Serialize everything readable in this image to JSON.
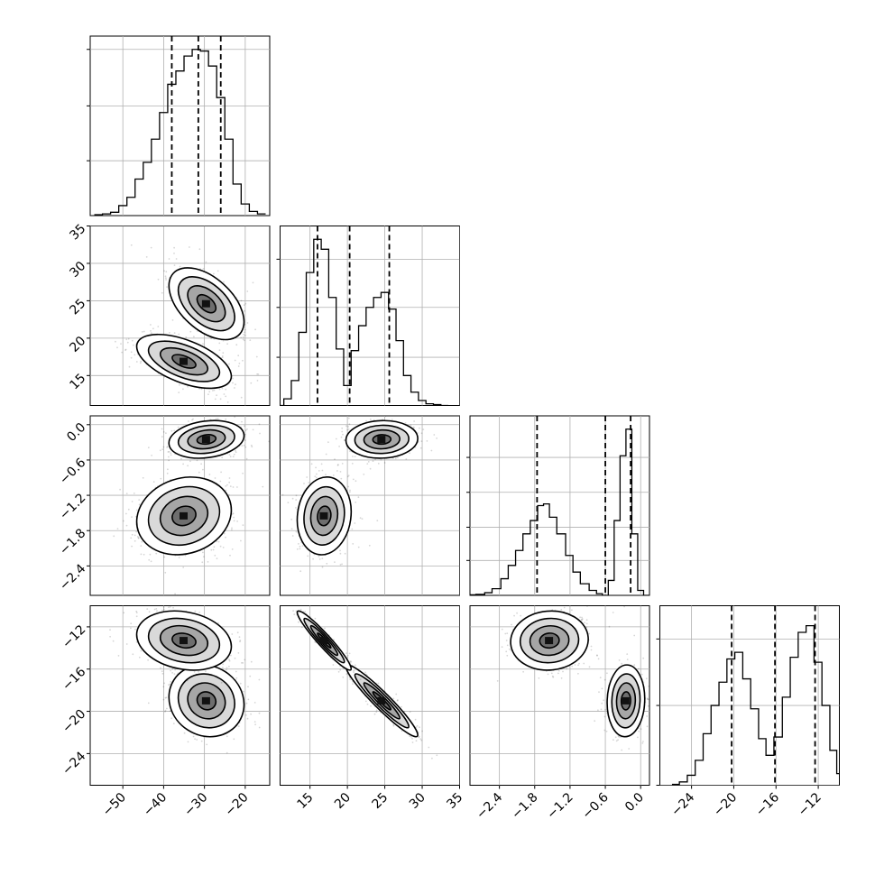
{
  "chart_data": {
    "type": "corner",
    "parameters": [
      {
        "range": [
          -58,
          -14
        ],
        "ticks": [
          "−50",
          "−40",
          "−30",
          "−20"
        ],
        "tick_values": [
          -50,
          -40,
          -30,
          -20
        ],
        "quantiles": [
          -38,
          -31.5,
          -26
        ],
        "hist_max": 1.0,
        "hist_ticks": [
          1.0,
          0.66,
          0.33
        ],
        "hist": [
          [
            -56,
            0.005
          ],
          [
            -54,
            0.01
          ],
          [
            -52,
            0.02
          ],
          [
            -50,
            0.06
          ],
          [
            -48,
            0.11
          ],
          [
            -46,
            0.22
          ],
          [
            -44,
            0.32
          ],
          [
            -42,
            0.46
          ],
          [
            -40,
            0.62
          ],
          [
            -38,
            0.79
          ],
          [
            -36,
            0.87
          ],
          [
            -34,
            0.96
          ],
          [
            -32,
            1.0
          ],
          [
            -30,
            0.99
          ],
          [
            -28,
            0.9
          ],
          [
            -26,
            0.71
          ],
          [
            -24,
            0.46
          ],
          [
            -22,
            0.19
          ],
          [
            -20,
            0.07
          ],
          [
            -18,
            0.025
          ],
          [
            -16,
            0.01
          ]
        ]
      },
      {
        "range": [
          11,
          35
        ],
        "ticks": [
          "15",
          "20",
          "25",
          "30",
          "35"
        ],
        "tick_values": [
          15,
          20,
          25,
          30,
          35
        ],
        "quantiles": [
          16,
          20.3,
          25.6
        ],
        "hist_max": 1.0,
        "hist_ticks": [
          0.88,
          0.59,
          0.29
        ],
        "hist": [
          [
            11,
            0.0
          ],
          [
            12,
            0.04
          ],
          [
            13,
            0.15
          ],
          [
            14,
            0.44
          ],
          [
            15,
            0.8
          ],
          [
            16,
            1.0
          ],
          [
            17,
            0.94
          ],
          [
            18,
            0.65
          ],
          [
            19,
            0.34
          ],
          [
            20,
            0.12
          ],
          [
            21,
            0.33
          ],
          [
            22,
            0.48
          ],
          [
            23,
            0.59
          ],
          [
            24,
            0.65
          ],
          [
            25,
            0.68
          ],
          [
            26,
            0.58
          ],
          [
            27,
            0.39
          ],
          [
            28,
            0.18
          ],
          [
            29,
            0.08
          ],
          [
            30,
            0.03
          ],
          [
            31,
            0.01
          ],
          [
            32,
            0.005
          ],
          [
            33,
            0.0
          ]
        ]
      },
      {
        "range": [
          -2.9,
          0.15
        ],
        "ticks": [
          "−2.4",
          "−1.8",
          "−1.2",
          "−0.6",
          "0.0"
        ],
        "tick_values": [
          -2.4,
          -1.8,
          -1.2,
          -0.6,
          0.0
        ],
        "quantiles": [
          -1.76,
          -0.6,
          -0.17
        ],
        "hist_max": 1.0,
        "hist_ticks": [
          0.83,
          0.62,
          0.41,
          0.21
        ],
        "hist": [
          [
            -2.9,
            0.003
          ],
          [
            -2.7,
            0.006
          ],
          [
            -2.6,
            0.016
          ],
          [
            -2.45,
            0.04
          ],
          [
            -2.3,
            0.1
          ],
          [
            -2.2,
            0.18
          ],
          [
            -2.05,
            0.27
          ],
          [
            -1.95,
            0.37
          ],
          [
            -1.8,
            0.45
          ],
          [
            -1.7,
            0.54
          ],
          [
            -1.6,
            0.55
          ],
          [
            -1.5,
            0.47
          ],
          [
            -1.35,
            0.37
          ],
          [
            -1.2,
            0.24
          ],
          [
            -1.1,
            0.14
          ],
          [
            -0.95,
            0.07
          ],
          [
            -0.8,
            0.03
          ],
          [
            -0.7,
            0.01
          ],
          [
            -0.6,
            0.0
          ],
          [
            -0.5,
            0.09
          ],
          [
            -0.4,
            0.45
          ],
          [
            -0.3,
            0.84
          ],
          [
            -0.2,
            1.0
          ],
          [
            -0.1,
            0.37
          ],
          [
            0.0,
            0.03
          ],
          [
            0.1,
            0.0
          ]
        ]
      },
      {
        "range": [
          -27,
          -10
        ],
        "ticks": [
          "−24",
          "−20",
          "−16",
          "−12"
        ],
        "tick_values": [
          -24,
          -20,
          -16,
          -12
        ],
        "quantiles": [
          -20.2,
          -16.1,
          -12.3
        ],
        "hist_max": 1.0,
        "hist_ticks": [
          0.88,
          0.48,
          0.0
        ],
        "hist": [
          [
            -25.5,
            0.005
          ],
          [
            -24.8,
            0.02
          ],
          [
            -24,
            0.06
          ],
          [
            -23.3,
            0.15
          ],
          [
            -22.5,
            0.31
          ],
          [
            -21.8,
            0.48
          ],
          [
            -21,
            0.62
          ],
          [
            -20.3,
            0.76
          ],
          [
            -19.5,
            0.8
          ],
          [
            -18.8,
            0.64
          ],
          [
            -18,
            0.46
          ],
          [
            -17.3,
            0.28
          ],
          [
            -16.6,
            0.18
          ],
          [
            -15.8,
            0.29
          ],
          [
            -15,
            0.53
          ],
          [
            -14.3,
            0.77
          ],
          [
            -13.5,
            0.92
          ],
          [
            -12.8,
            0.96
          ],
          [
            -12,
            0.74
          ],
          [
            -11.3,
            0.48
          ],
          [
            -10.5,
            0.21
          ],
          [
            -10,
            0.07
          ]
        ]
      }
    ],
    "modes": [
      {
        "means": [
          -29.5,
          24.6,
          -0.25,
          -19.0
        ],
        "sd": [
          4.6,
          2.4,
          0.16,
          1.7
        ]
      },
      {
        "means": [
          -35.0,
          16.9,
          -1.55,
          -13.3
        ],
        "sd": [
          5.8,
          1.8,
          0.33,
          1.4
        ]
      }
    ],
    "correlations": {
      "1-0": [
        -0.5,
        -0.55
      ],
      "2-0": [
        0.2,
        0.15
      ],
      "2-1": [
        0.05,
        0.1
      ],
      "3-0": [
        -0.1,
        -0.2
      ],
      "3-1": [
        -0.95,
        -0.95
      ],
      "3-2": [
        0.05,
        0.05
      ]
    },
    "contour_levels": [
      0.5,
      1.0,
      1.5,
      2.0
    ]
  }
}
